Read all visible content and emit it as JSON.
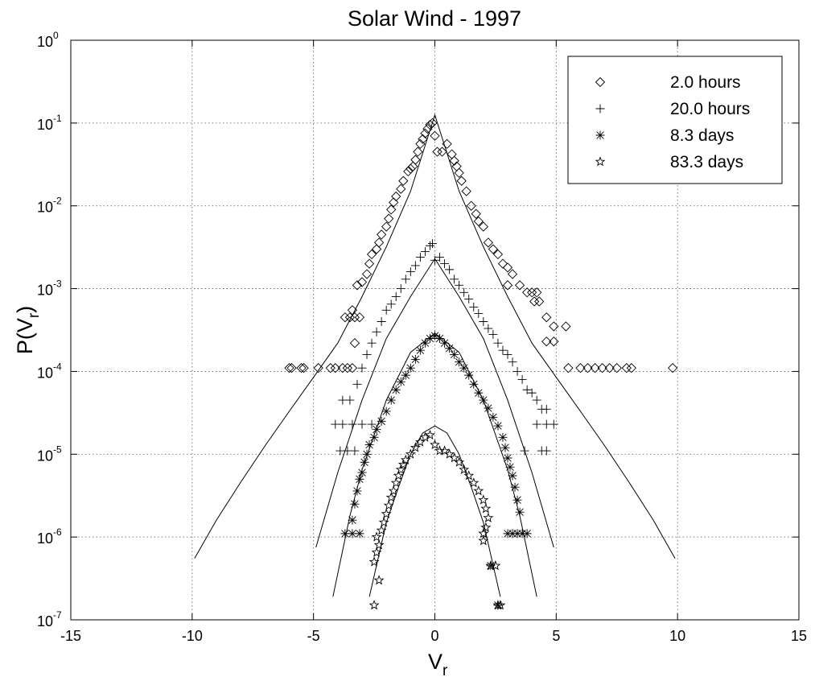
{
  "chart_data": {
    "type": "scatter",
    "title": "Solar Wind - 1997",
    "xlabel": {
      "main": "V",
      "sub": "r"
    },
    "ylabel": {
      "main": "P(V",
      "sub": "r",
      "close": ")"
    },
    "xlim": [
      -15,
      15
    ],
    "ylim": [
      1e-07,
      1
    ],
    "yscale": "log",
    "grid": true,
    "legend_position": "top-right",
    "x_ticks": [
      {
        "value": -15,
        "label": "-15"
      },
      {
        "value": -10,
        "label": "-10"
      },
      {
        "value": -5,
        "label": "-5"
      },
      {
        "value": 0,
        "label": "0"
      },
      {
        "value": 5,
        "label": "5"
      },
      {
        "value": 10,
        "label": "10"
      },
      {
        "value": 15,
        "label": "15"
      }
    ],
    "y_ticks": [
      {
        "value": 1e-07,
        "base": "10",
        "exp": "-7"
      },
      {
        "value": 1e-06,
        "base": "10",
        "exp": "-6"
      },
      {
        "value": 1e-05,
        "base": "10",
        "exp": "-5"
      },
      {
        "value": 0.0001,
        "base": "10",
        "exp": "-4"
      },
      {
        "value": 0.001,
        "base": "10",
        "exp": "-3"
      },
      {
        "value": 0.01,
        "base": "10",
        "exp": "-2"
      },
      {
        "value": 0.1,
        "base": "10",
        "exp": "-1"
      },
      {
        "value": 1,
        "base": "10",
        "exp": "0"
      }
    ],
    "series": [
      {
        "name": "2.0 hours",
        "marker": "diamond",
        "points": [
          [
            -6.0,
            0.00011
          ],
          [
            -5.9,
            0.00011
          ],
          [
            -5.5,
            0.00011
          ],
          [
            -5.4,
            0.00011
          ],
          [
            -4.8,
            0.00011
          ],
          [
            -4.3,
            0.00011
          ],
          [
            -4.1,
            0.00011
          ],
          [
            -3.8,
            0.00011
          ],
          [
            -3.6,
            0.00011
          ],
          [
            -3.4,
            0.00011
          ],
          [
            -3.7,
            0.00045
          ],
          [
            -3.5,
            0.00045
          ],
          [
            -3.3,
            0.00045
          ],
          [
            -3.1,
            0.00045
          ],
          [
            -3.3,
            0.00022
          ],
          [
            -3.4,
            0.00055
          ],
          [
            -3.2,
            0.0011
          ],
          [
            -3.0,
            0.0012
          ],
          [
            -2.8,
            0.0015
          ],
          [
            -2.7,
            0.002
          ],
          [
            -2.6,
            0.0026
          ],
          [
            -2.4,
            0.003
          ],
          [
            -2.3,
            0.0036
          ],
          [
            -2.2,
            0.0045
          ],
          [
            -2.0,
            0.0056
          ],
          [
            -1.9,
            0.007
          ],
          [
            -1.8,
            0.009
          ],
          [
            -1.7,
            0.011
          ],
          [
            -1.6,
            0.013
          ],
          [
            -1.4,
            0.016
          ],
          [
            -1.3,
            0.02
          ],
          [
            -1.1,
            0.026
          ],
          [
            -1.0,
            0.028
          ],
          [
            -0.9,
            0.03
          ],
          [
            -0.8,
            0.036
          ],
          [
            -0.7,
            0.045
          ],
          [
            -0.6,
            0.056
          ],
          [
            -0.5,
            0.064
          ],
          [
            -0.4,
            0.075
          ],
          [
            -0.3,
            0.085
          ],
          [
            -0.2,
            0.095
          ],
          [
            -0.1,
            0.1
          ],
          [
            0.0,
            0.07
          ],
          [
            0.1,
            0.045
          ],
          [
            0.3,
            0.045
          ],
          [
            0.5,
            0.056
          ],
          [
            0.7,
            0.042
          ],
          [
            0.8,
            0.035
          ],
          [
            0.9,
            0.03
          ],
          [
            1.0,
            0.025
          ],
          [
            1.1,
            0.02
          ],
          [
            1.3,
            0.015
          ],
          [
            1.5,
            0.01
          ],
          [
            1.7,
            0.008
          ],
          [
            1.8,
            0.0065
          ],
          [
            2.0,
            0.0056
          ],
          [
            2.2,
            0.0036
          ],
          [
            2.4,
            0.003
          ],
          [
            2.6,
            0.0026
          ],
          [
            2.8,
            0.002
          ],
          [
            3.0,
            0.0018
          ],
          [
            3.2,
            0.0015
          ],
          [
            3.0,
            0.0011
          ],
          [
            3.5,
            0.0011
          ],
          [
            3.8,
            0.0009
          ],
          [
            4.0,
            0.0009
          ],
          [
            4.2,
            0.0009
          ],
          [
            4.1,
            0.0007
          ],
          [
            4.3,
            0.0007
          ],
          [
            4.6,
            0.00045
          ],
          [
            4.9,
            0.00035
          ],
          [
            5.4,
            0.00035
          ],
          [
            4.6,
            0.00023
          ],
          [
            4.9,
            0.00023
          ],
          [
            5.5,
            0.00011
          ],
          [
            6.0,
            0.00011
          ],
          [
            6.3,
            0.00011
          ],
          [
            6.6,
            0.00011
          ],
          [
            6.9,
            0.00011
          ],
          [
            7.2,
            0.00011
          ],
          [
            7.5,
            0.00011
          ],
          [
            7.9,
            0.00011
          ],
          [
            8.1,
            0.00011
          ],
          [
            9.8,
            0.00011
          ]
        ]
      },
      {
        "name": "20.0 hours",
        "marker": "plus",
        "points": [
          [
            -4.1,
            2.3e-05
          ],
          [
            -3.8,
            2.3e-05
          ],
          [
            -3.4,
            2.3e-05
          ],
          [
            -3.9,
            1.1e-05
          ],
          [
            -3.6,
            1.1e-05
          ],
          [
            -3.3,
            1.1e-05
          ],
          [
            -3.0,
            2.3e-05
          ],
          [
            -2.6,
            2.3e-05
          ],
          [
            -3.8,
            4.5e-05
          ],
          [
            -3.5,
            4.5e-05
          ],
          [
            -3.2,
            7e-05
          ],
          [
            -3.0,
            0.00011
          ],
          [
            -2.8,
            0.00016
          ],
          [
            -2.6,
            0.00022
          ],
          [
            -2.4,
            0.0003
          ],
          [
            -2.2,
            0.0004
          ],
          [
            -2.0,
            0.00055
          ],
          [
            -1.8,
            0.00065
          ],
          [
            -1.6,
            0.0008
          ],
          [
            -1.4,
            0.001
          ],
          [
            -1.2,
            0.0013
          ],
          [
            -1.0,
            0.0016
          ],
          [
            -0.8,
            0.0019
          ],
          [
            -0.6,
            0.0024
          ],
          [
            -0.4,
            0.0028
          ],
          [
            -0.2,
            0.0033
          ],
          [
            -0.1,
            0.0035
          ],
          [
            0.0,
            0.0022
          ],
          [
            0.2,
            0.0024
          ],
          [
            0.4,
            0.002
          ],
          [
            0.6,
            0.0017
          ],
          [
            0.8,
            0.0013
          ],
          [
            1.0,
            0.0011
          ],
          [
            1.2,
            0.0009
          ],
          [
            1.4,
            0.00075
          ],
          [
            1.6,
            0.0006
          ],
          [
            1.8,
            0.0005
          ],
          [
            2.0,
            0.0004
          ],
          [
            2.2,
            0.00033
          ],
          [
            2.4,
            0.00028
          ],
          [
            2.6,
            0.00022
          ],
          [
            2.8,
            0.00018
          ],
          [
            3.0,
            0.00016
          ],
          [
            3.2,
            0.00013
          ],
          [
            3.4,
            0.0001
          ],
          [
            3.6,
            8e-05
          ],
          [
            3.8,
            6e-05
          ],
          [
            4.0,
            5.5e-05
          ],
          [
            4.2,
            4.5e-05
          ],
          [
            4.4,
            3.5e-05
          ],
          [
            4.6,
            3.5e-05
          ],
          [
            4.2,
            2.3e-05
          ],
          [
            4.6,
            2.3e-05
          ],
          [
            4.9,
            2.3e-05
          ],
          [
            3.7,
            1.1e-05
          ],
          [
            4.4,
            1.1e-05
          ],
          [
            4.6,
            1.1e-05
          ]
        ]
      },
      {
        "name": "8.3 days",
        "marker": "asterisk",
        "points": [
          [
            -3.7,
            1.1e-06
          ],
          [
            -3.4,
            1.1e-06
          ],
          [
            -3.1,
            1.1e-06
          ],
          [
            -3.4,
            1.6e-06
          ],
          [
            -3.3,
            2.5e-06
          ],
          [
            -3.2,
            3.6e-06
          ],
          [
            -3.1,
            5e-06
          ],
          [
            -3.0,
            6e-06
          ],
          [
            -2.9,
            8e-06
          ],
          [
            -2.8,
            1e-05
          ],
          [
            -2.7,
            1.3e-05
          ],
          [
            -2.5,
            1.6e-05
          ],
          [
            -2.4,
            2e-05
          ],
          [
            -2.2,
            2.5e-05
          ],
          [
            -2.0,
            3.3e-05
          ],
          [
            -1.8,
            4.5e-05
          ],
          [
            -1.6,
            6e-05
          ],
          [
            -1.4,
            7.5e-05
          ],
          [
            -1.2,
            9e-05
          ],
          [
            -1.0,
            0.00011
          ],
          [
            -0.8,
            0.00014
          ],
          [
            -0.6,
            0.00018
          ],
          [
            -0.4,
            0.00022
          ],
          [
            -0.2,
            0.00025
          ],
          [
            0.0,
            0.00027
          ],
          [
            0.2,
            0.00025
          ],
          [
            0.4,
            0.00022
          ],
          [
            0.6,
            0.00019
          ],
          [
            0.8,
            0.00016
          ],
          [
            1.0,
            0.00013
          ],
          [
            1.2,
            0.00011
          ],
          [
            1.4,
            9e-05
          ],
          [
            1.6,
            7e-05
          ],
          [
            1.8,
            5.5e-05
          ],
          [
            2.0,
            4.5e-05
          ],
          [
            2.2,
            3.6e-05
          ],
          [
            2.4,
            2.8e-05
          ],
          [
            2.6,
            2.2e-05
          ],
          [
            2.8,
            1.6e-05
          ],
          [
            2.9,
            1.2e-05
          ],
          [
            3.0,
            9e-06
          ],
          [
            3.1,
            7e-06
          ],
          [
            3.2,
            5.5e-06
          ],
          [
            3.3,
            4e-06
          ],
          [
            3.4,
            2.8e-06
          ],
          [
            3.5,
            2e-06
          ],
          [
            3.0,
            1.1e-06
          ],
          [
            3.2,
            1.1e-06
          ],
          [
            3.4,
            1.1e-06
          ],
          [
            3.6,
            1.1e-06
          ],
          [
            3.8,
            1.1e-06
          ],
          [
            2.3,
            4.5e-07
          ],
          [
            2.6,
            1.5e-07
          ]
        ]
      },
      {
        "name": "83.3 days",
        "marker": "star",
        "points": [
          [
            -2.5,
            1.5e-07
          ],
          [
            -2.3,
            3e-07
          ],
          [
            -2.5,
            5e-07
          ],
          [
            -2.4,
            6.5e-07
          ],
          [
            -2.3,
            8e-07
          ],
          [
            -2.4,
            1e-06
          ],
          [
            -2.2,
            1.2e-06
          ],
          [
            -2.1,
            1.5e-06
          ],
          [
            -2.0,
            1.9e-06
          ],
          [
            -1.9,
            2.4e-06
          ],
          [
            -1.8,
            3e-06
          ],
          [
            -1.7,
            3.6e-06
          ],
          [
            -1.6,
            4.5e-06
          ],
          [
            -1.5,
            5.5e-06
          ],
          [
            -1.4,
            6.5e-06
          ],
          [
            -1.3,
            7.5e-06
          ],
          [
            -1.2,
            8.5e-06
          ],
          [
            -1.0,
            1e-05
          ],
          [
            -0.8,
            1.2e-05
          ],
          [
            -0.6,
            1.4e-05
          ],
          [
            -0.4,
            1.6e-05
          ],
          [
            -0.2,
            1.7e-05
          ],
          [
            0.0,
            1.3e-05
          ],
          [
            0.2,
            1.1e-05
          ],
          [
            0.4,
            1.1e-05
          ],
          [
            0.6,
            1e-05
          ],
          [
            0.8,
            9e-06
          ],
          [
            1.0,
            8e-06
          ],
          [
            1.2,
            6.5e-06
          ],
          [
            1.4,
            5.5e-06
          ],
          [
            1.6,
            4.5e-06
          ],
          [
            1.8,
            3.6e-06
          ],
          [
            2.0,
            2.8e-06
          ],
          [
            2.1,
            2.2e-06
          ],
          [
            2.2,
            1.7e-06
          ],
          [
            2.0,
            1.1e-06
          ],
          [
            2.1,
            1.3e-06
          ],
          [
            2.0,
            9e-07
          ],
          [
            2.3,
            4.5e-07
          ],
          [
            2.5,
            4.5e-07
          ],
          [
            2.6,
            1.5e-07
          ],
          [
            2.7,
            1.5e-07
          ]
        ]
      }
    ],
    "fit_curves": [
      [
        [
          -9.9,
          5.5e-07
        ],
        [
          -9,
          1.6e-06
        ],
        [
          -8,
          4.6e-06
        ],
        [
          -7,
          1.26e-05
        ],
        [
          -6,
          3.3e-05
        ],
        [
          -5,
          8.5e-05
        ],
        [
          -4,
          0.00022
        ],
        [
          -3,
          0.0008
        ],
        [
          -2,
          0.0032
        ],
        [
          -1,
          0.015
        ],
        [
          0,
          0.125
        ],
        [
          1,
          0.015
        ],
        [
          2,
          0.0032
        ],
        [
          3,
          0.0008
        ],
        [
          4,
          0.00022
        ],
        [
          5,
          8.5e-05
        ],
        [
          6,
          3.3e-05
        ],
        [
          7,
          1.26e-05
        ],
        [
          8,
          4.6e-06
        ],
        [
          9,
          1.6e-06
        ],
        [
          9.9,
          5.5e-07
        ]
      ],
      [
        [
          -4.9,
          7.5e-07
        ],
        [
          -4,
          6e-06
        ],
        [
          -3,
          4.5e-05
        ],
        [
          -2,
          0.00025
        ],
        [
          -1,
          0.0008
        ],
        [
          0,
          0.0023
        ],
        [
          1,
          0.0008
        ],
        [
          2,
          0.00025
        ],
        [
          3,
          4.5e-05
        ],
        [
          4,
          6e-06
        ],
        [
          4.9,
          7.5e-07
        ]
      ],
      [
        [
          -4.2,
          1.9e-07
        ],
        [
          -3.5,
          1.8e-06
        ],
        [
          -3,
          6.5e-06
        ],
        [
          -2,
          4.5e-05
        ],
        [
          -1,
          0.00017
        ],
        [
          0,
          0.00029
        ],
        [
          1,
          0.00017
        ],
        [
          2,
          4.5e-05
        ],
        [
          3,
          6.5e-06
        ],
        [
          3.5,
          1.8e-06
        ],
        [
          4.2,
          1.9e-07
        ]
      ],
      [
        [
          -2.7,
          1.9e-07
        ],
        [
          -2,
          1.5e-06
        ],
        [
          -1.5,
          4e-06
        ],
        [
          -1,
          1e-05
        ],
        [
          -0.5,
          1.8e-05
        ],
        [
          0,
          2.2e-05
        ],
        [
          0.5,
          1.8e-05
        ],
        [
          1,
          1e-05
        ],
        [
          1.5,
          4e-06
        ],
        [
          2,
          1.5e-06
        ],
        [
          2.7,
          1.9e-07
        ]
      ]
    ]
  }
}
